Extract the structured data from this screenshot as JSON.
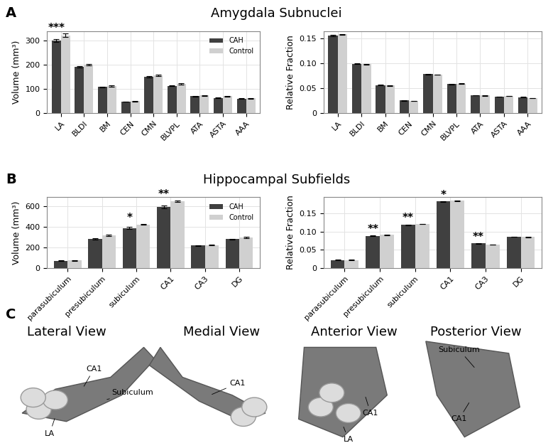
{
  "chart_data": [
    {
      "type": "bar",
      "y_label": "Volume (mm³)",
      "categories": [
        "LA",
        "BLDI",
        "BM",
        "CEN",
        "CMN",
        "BLVPL",
        "ATA",
        "ASTA",
        "AAA"
      ],
      "series": [
        {
          "name": "CAH",
          "color": "#404040",
          "values": [
            300,
            190,
            108,
            47,
            150,
            113,
            69,
            63,
            60
          ],
          "errors": [
            5,
            3,
            2,
            1,
            3,
            2,
            1.5,
            1.5,
            1.5
          ]
        },
        {
          "name": "Control",
          "color": "#d0d0d0",
          "values": [
            322,
            199,
            113,
            49,
            157,
            120,
            73,
            69,
            61
          ],
          "errors": [
            7,
            3,
            3,
            1,
            3,
            3,
            1.5,
            1.5,
            1.5
          ]
        }
      ],
      "ylim": [
        0,
        340
      ],
      "yticks": [
        0,
        100,
        200,
        300
      ],
      "grid": true,
      "legend": "upper right",
      "annotations": [
        {
          "category": "LA",
          "text": "***"
        }
      ]
    },
    {
      "type": "bar",
      "y_label": "Relative Fraction",
      "categories": [
        "LA",
        "BLDI",
        "BM",
        "CEN",
        "CMN",
        "BLVPL",
        "ATA",
        "ASTA",
        "AAA"
      ],
      "series": [
        {
          "name": "CAH",
          "color": "#404040",
          "values": [
            0.156,
            0.099,
            0.056,
            0.025,
            0.078,
            0.058,
            0.036,
            0.033,
            0.032
          ],
          "errors": [
            0.001,
            0.0005,
            0.0005,
            0.0003,
            0.0005,
            0.0005,
            0.0003,
            0.0003,
            0.0003
          ]
        },
        {
          "name": "Control",
          "color": "#d0d0d0",
          "values": [
            0.158,
            0.098,
            0.055,
            0.024,
            0.077,
            0.059,
            0.035,
            0.034,
            0.03
          ],
          "errors": [
            0.001,
            0.0005,
            0.0005,
            0.0003,
            0.0005,
            0.0005,
            0.0003,
            0.0003,
            0.0003
          ]
        }
      ],
      "ylim": [
        0,
        0.165
      ],
      "yticks": [
        0,
        0.05,
        {
          "value": 0.1,
          "label": "0.10"
        },
        0.15
      ],
      "grid": true,
      "annotations": []
    },
    {
      "type": "bar",
      "y_label": "Volume (mm³)",
      "categories": [
        "parasubiculum",
        "presubiculum",
        "subiculum",
        "CA1",
        "CA3",
        "DG"
      ],
      "series": [
        {
          "name": "CAH",
          "color": "#404040",
          "values": [
            72,
            285,
            388,
            595,
            218,
            280
          ],
          "errors": [
            2,
            8,
            10,
            12,
            4,
            6
          ]
        },
        {
          "name": "Control",
          "color": "#d0d0d0",
          "values": [
            73,
            318,
            425,
            650,
            223,
            298
          ],
          "errors": [
            2,
            5,
            6,
            8,
            4,
            5
          ]
        }
      ],
      "ylim": [
        0,
        690
      ],
      "yticks": [
        0,
        200,
        400,
        600
      ],
      "grid": true,
      "legend": "upper right",
      "annotations": [
        {
          "category": "subiculum",
          "text": "*"
        },
        {
          "category": "CA1",
          "text": "**"
        }
      ]
    },
    {
      "type": "bar",
      "y_label": "Relative Fraction",
      "categories": [
        "parasubiculum",
        "presubiculum",
        "subiculum",
        "CA1",
        "CA3",
        "DG"
      ],
      "series": [
        {
          "name": "CAH",
          "color": "#404040",
          "values": [
            0.022,
            0.088,
            0.119,
            0.183,
            0.068,
            0.086
          ],
          "errors": [
            0.0005,
            0.001,
            0.001,
            0.001,
            0.001,
            0.0005
          ]
        },
        {
          "name": "Control",
          "color": "#d0d0d0",
          "values": [
            0.022,
            0.091,
            0.121,
            0.185,
            0.064,
            0.085
          ],
          "errors": [
            0.0005,
            0.0005,
            0.0005,
            0.0005,
            0.0005,
            0.0005
          ]
        }
      ],
      "ylim": [
        0,
        0.195
      ],
      "yticks": [
        0,
        0.05,
        {
          "value": 0.1,
          "label": "0.10"
        },
        0.15
      ],
      "grid": true,
      "annotations": [
        {
          "category": "presubiculum",
          "text": "**"
        },
        {
          "category": "subiculum",
          "text": "**"
        },
        {
          "category": "CA1",
          "text": "*"
        },
        {
          "category": "CA3",
          "text": "**"
        }
      ]
    }
  ],
  "panels": [
    {
      "label": "A",
      "title": "Amygdala Subnuclei"
    },
    {
      "label": "B",
      "title": "Hippocampal Subfields"
    },
    {
      "label": "C",
      "views": [
        {
          "title": "Lateral View",
          "labels": [
            "CA1",
            "Subiculum",
            "LA"
          ]
        },
        {
          "title": "Medial View",
          "labels": [
            "CA1"
          ]
        },
        {
          "title": "Anterior View",
          "labels": [
            "CA1",
            "LA"
          ]
        },
        {
          "title": "Posterior View",
          "labels": [
            "Subiculum",
            "CA1"
          ]
        }
      ]
    }
  ]
}
